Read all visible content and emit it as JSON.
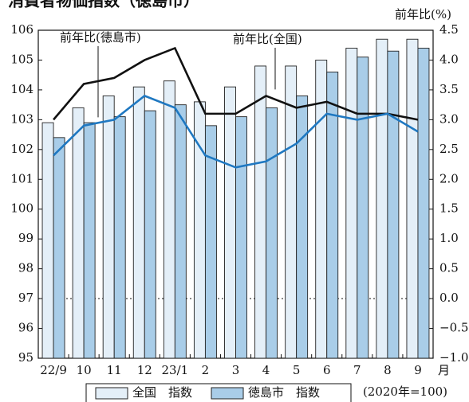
{
  "chart_data": {
    "type": "bar-line",
    "title": "消費者物価指数（徳島市）",
    "categories": [
      "22/9",
      "10",
      "11",
      "12",
      "23/1",
      "2",
      "3",
      "4",
      "5",
      "6",
      "7",
      "8",
      "9"
    ],
    "xlabel": "月",
    "y2label": "前年比(%)",
    "note": "(2020年=100)",
    "series": [
      {
        "name": "全国　指数",
        "type": "bar",
        "color": "#e4eff8",
        "values": [
          102.9,
          103.4,
          103.8,
          104.1,
          104.3,
          103.6,
          104.1,
          104.8,
          104.8,
          105.0,
          105.4,
          105.7,
          105.7
        ]
      },
      {
        "name": "徳島市　指数",
        "type": "bar",
        "color": "#a9cde8",
        "values": [
          102.4,
          102.9,
          103.1,
          103.3,
          103.5,
          102.8,
          103.1,
          103.4,
          103.8,
          104.6,
          105.1,
          105.3,
          105.4
        ]
      },
      {
        "name": "前年比(全国)",
        "type": "line",
        "axis": "y2",
        "color": "#111111",
        "values": [
          3.0,
          3.6,
          3.7,
          4.0,
          4.2,
          3.1,
          3.1,
          3.4,
          3.2,
          3.3,
          3.1,
          3.1,
          3.0
        ]
      },
      {
        "name": "前年比(徳島市)",
        "type": "line",
        "axis": "y2",
        "color": "#1f78c1",
        "values": [
          2.4,
          2.9,
          3.0,
          3.4,
          3.2,
          2.4,
          2.2,
          2.3,
          2.6,
          3.1,
          3.0,
          3.1,
          2.8
        ]
      }
    ],
    "ylim": [
      95,
      106
    ],
    "yticks": [
      95,
      96,
      97,
      98,
      99,
      100,
      101,
      102,
      103,
      104,
      105,
      106
    ],
    "y2lim": [
      -1.0,
      4.5
    ],
    "y2ticks": [
      {
        "value": -1.0,
        "label": "−1.0"
      },
      {
        "value": -0.5,
        "label": "−0.5"
      },
      {
        "value": 0,
        "label": "0.0"
      },
      0.5,
      {
        "value": 1,
        "label": "1.0"
      },
      1.5,
      {
        "value": 2,
        "label": "2.0"
      },
      2.5,
      {
        "value": 3,
        "label": "3.0"
      },
      3.5,
      {
        "value": 4,
        "label": "4.0"
      },
      4.5
    ]
  }
}
